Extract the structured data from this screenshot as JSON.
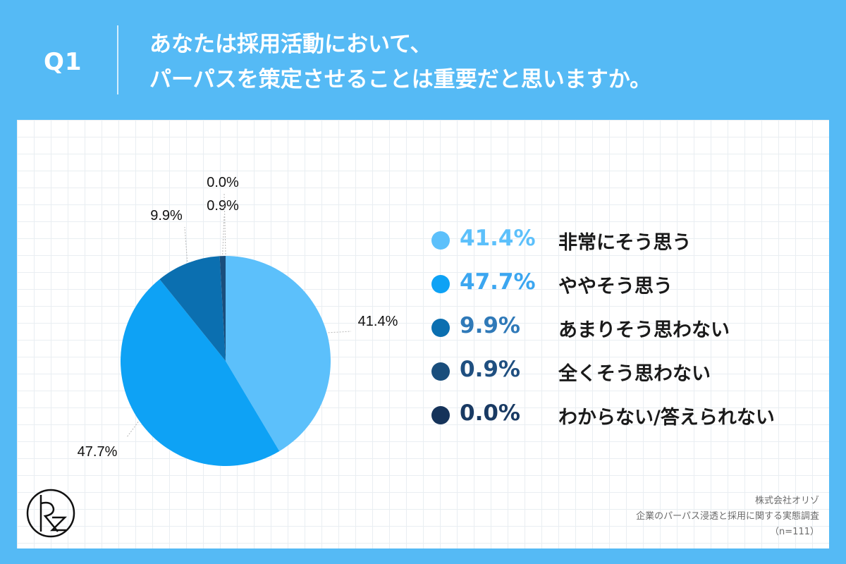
{
  "header": {
    "q_number": "Q1",
    "question_line1": "あなたは採用活動において、",
    "question_line2": "パーパスを策定させることは重要だと思いますか。"
  },
  "chart_data": {
    "type": "pie",
    "slices": [
      {
        "label": "非常にそう思う",
        "value": 41.4,
        "display": "41.4%",
        "color": "#5cc0fb"
      },
      {
        "label": "ややそう思う",
        "value": 47.7,
        "display": "47.7%",
        "color": "#0ea2f5"
      },
      {
        "label": "あまりそう思わない",
        "value": 9.9,
        "display": "9.9%",
        "color": "#0b6fb0"
      },
      {
        "label": "全くそう思わない",
        "value": 0.9,
        "display": "0.9%",
        "color": "#1a4e7c"
      },
      {
        "label": "わからない/答えられない",
        "value": 0.0,
        "display": "0.0%",
        "color": "#15335a"
      }
    ],
    "legend_placement": "right",
    "pct_colors": [
      "#5cc0fb",
      "#3ba6f0",
      "#2f79b8",
      "#1f4f80",
      "#193a63"
    ]
  },
  "footer": {
    "company": "株式会社オリゾ",
    "survey": "企業のパーパス浸透と採用に関する実態調査",
    "sample": "（n=111）"
  },
  "logo": {
    "name": "orizo-logo-icon"
  }
}
